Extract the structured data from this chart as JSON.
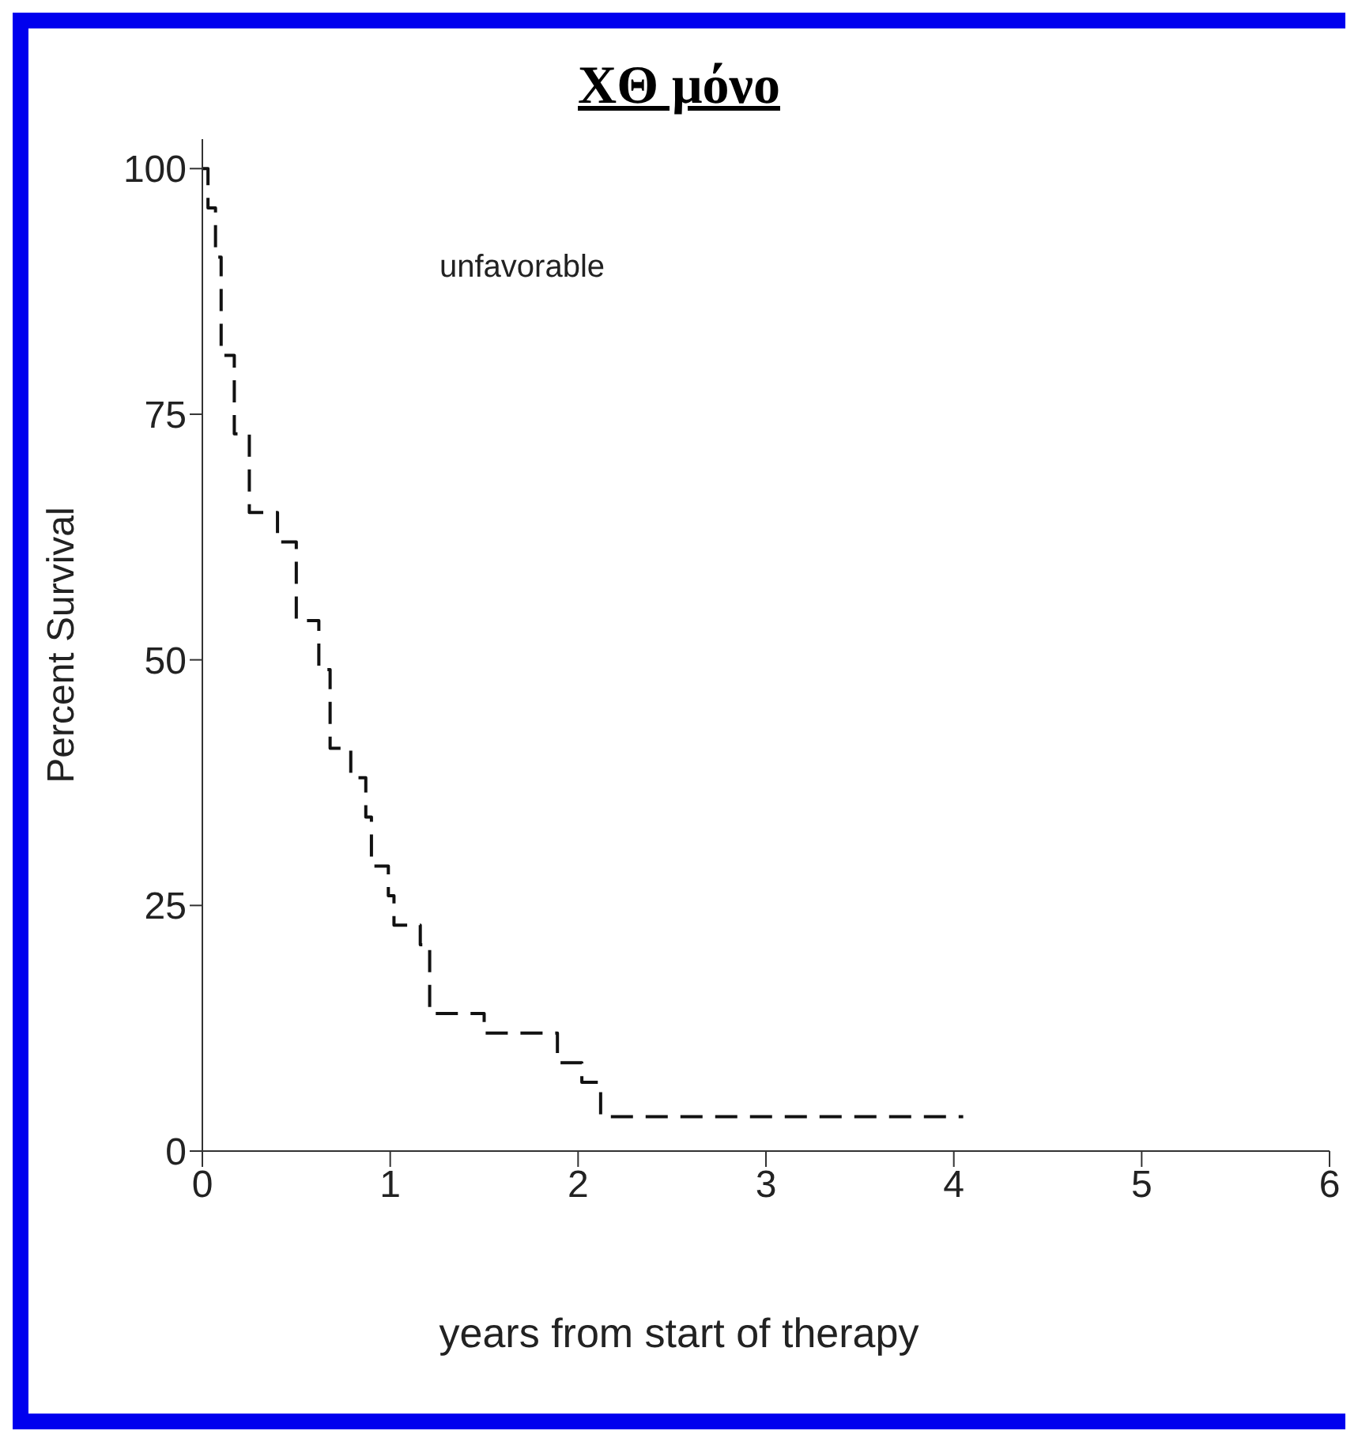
{
  "chart_data": {
    "type": "step",
    "title": "ΧΘ μόνο",
    "xlabel": "years from start of therapy",
    "ylabel": "Percent Survival",
    "annotations": [
      "unfavorable"
    ],
    "series": [
      {
        "color": "#111111",
        "line_style": "dashed",
        "marker": "none",
        "x": [
          0,
          0.03,
          0.07,
          0.1,
          0.17,
          0.25,
          0.4,
          0.5,
          0.62,
          0.68,
          0.79,
          0.87,
          0.9,
          0.99,
          1.02,
          1.16,
          1.21,
          1.5,
          1.89,
          2.02,
          2.12,
          4.05
        ],
        "values": [
          100,
          96,
          91,
          81,
          73,
          65,
          62,
          54,
          49,
          41,
          38,
          34,
          29,
          26,
          23,
          21,
          14,
          12,
          9,
          7,
          3.5,
          3.5
        ]
      }
    ],
    "xlim": [
      0,
      6
    ],
    "xticks": [
      0,
      1,
      2,
      3,
      4,
      5,
      6
    ],
    "ylim": [
      0,
      103
    ],
    "yticks": [
      0,
      25,
      50,
      75,
      100
    ],
    "grid": false
  }
}
